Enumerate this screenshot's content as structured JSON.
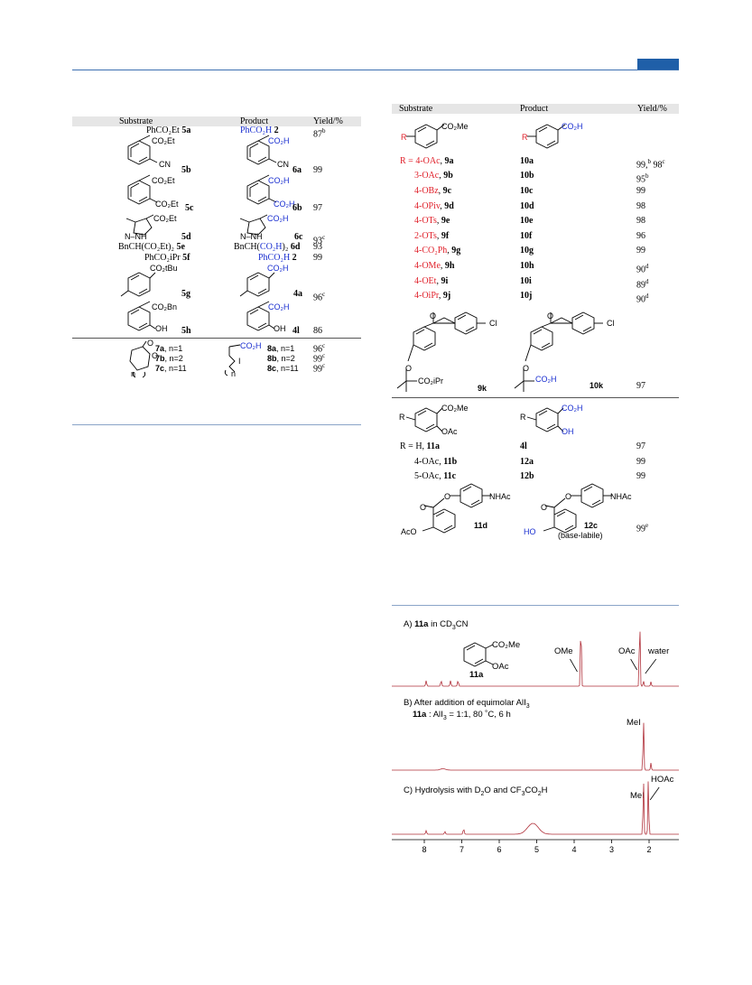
{
  "left_table": {
    "headers": {
      "substrate": "Substrate",
      "product": "Product",
      "yield": "Yield/%"
    },
    "rows": [
      {
        "substrate": "PhCO₂Et",
        "sub_id": "5a",
        "product": "PhCO₂H",
        "prod_id": "2",
        "yield": "87",
        "yield_note": "b"
      },
      {
        "substrate_group": "CO₂Et",
        "substrate_sub": "CN",
        "sub_id": "5b",
        "product_group": "CO₂H",
        "product_sub": "CN",
        "prod_id": "6a",
        "yield": "99"
      },
      {
        "substrate_group": "CO₂Et",
        "substrate_sub": "CO₂Et",
        "sub_id": "5c",
        "product_group": "CO₂H",
        "product_sub": "CO₂H",
        "prod_id": "6b",
        "yield": "97"
      },
      {
        "substrate_group": "CO₂Et",
        "substrate_ring": "N–NH",
        "sub_id": "5d",
        "product_group": "CO₂H",
        "product_ring": "N–NH",
        "prod_id": "6c",
        "yield": "93",
        "yield_note": "c"
      },
      {
        "substrate": "BnCH(CO₂Et)₂",
        "sub_id": "5e",
        "product_pre": "BnCH(",
        "product_blue": "CO₂H",
        "product_post": ")₂",
        "prod_id": "6d",
        "yield": "93"
      },
      {
        "substrate": "PhCO₂iPr",
        "sub_id": "5f",
        "product": "PhCO₂H",
        "prod_id": "2",
        "yield": "99"
      },
      {
        "substrate_group": "CO₂tBu",
        "sub_id": "5g",
        "product_group": "CO₂H",
        "prod_id": "4a",
        "yield": "96",
        "yield_note": "c"
      },
      {
        "substrate_group": "CO₂Bn",
        "substrate_sub": "OH",
        "sub_id": "5h",
        "product_group": "CO₂H",
        "product_sub": "OH",
        "prod_id": "4l",
        "yield": "86"
      }
    ],
    "lactones": [
      {
        "sub_id": "7a",
        "sub_n": ", n=1",
        "prod_id": "8a",
        "prod_n": ", n=1",
        "yield": "96",
        "yield_note": "c"
      },
      {
        "sub_id": "7b",
        "sub_n": ", n=2",
        "prod_id": "8b",
        "prod_n": ", n=2",
        "yield": "99",
        "yield_note": "c"
      },
      {
        "sub_id": "7c",
        "sub_n": ", n=11",
        "prod_id": "8c",
        "prod_n": ", n=11",
        "yield": "99",
        "yield_note": "c"
      }
    ],
    "lactone_labels": {
      "carbonyl_o": "O",
      "ring_o": "O",
      "n": "n",
      "prod_group": "CO₂H",
      "iodo": "I",
      "prod_n": "n"
    }
  },
  "right_table": {
    "headers": {
      "substrate": "Substrate",
      "product": "Product",
      "yield": "Yield/%"
    },
    "scheme1": {
      "sub_group": "CO₂Me",
      "r": "R",
      "prod_group": "CO₂H"
    },
    "rows": [
      {
        "prefix": "R = ",
        "r": "4-OAc",
        "sub_id": "9a",
        "prod_id": "10a",
        "yield": "99,",
        "note1": "b",
        "yield2": " 98",
        "note2": "c"
      },
      {
        "r": "3-OAc",
        "sub_id": "9b",
        "prod_id": "10b",
        "yield": "95",
        "note1": "b"
      },
      {
        "r": "4-OBz",
        "sub_id": "9c",
        "prod_id": "10c",
        "yield": "99"
      },
      {
        "r": "4-OPiv",
        "sub_id": "9d",
        "prod_id": "10d",
        "yield": "98"
      },
      {
        "r": "4-OTs",
        "sub_id": "9e",
        "prod_id": "10e",
        "yield": "98"
      },
      {
        "r": "2-OTs",
        "sub_id": "9f",
        "prod_id": "10f",
        "yield": "96"
      },
      {
        "r": "4-CO₂Ph",
        "sub_id": "9g",
        "prod_id": "10g",
        "yield": "99"
      },
      {
        "r": "4-OMe",
        "sub_id": "9h",
        "prod_id": "10h",
        "yield": "90",
        "note1": "d"
      },
      {
        "r": "4-OEt",
        "sub_id": "9i",
        "prod_id": "10i",
        "yield": "89",
        "note1": "d"
      },
      {
        "r": "4-OiPr",
        "sub_id": "9j",
        "prod_id": "10j",
        "yield": "90",
        "note1": "d"
      }
    ],
    "fenofibrate": {
      "o": "O",
      "cl": "Cl",
      "ether_o": "O",
      "sub_group": "CO₂iPr",
      "sub_id": "9k",
      "prod_group": "CO₂H",
      "prod_id": "10k",
      "yield": "97"
    },
    "scheme2": {
      "r": "R",
      "sub_group": "CO₂Me",
      "sub_oac": "OAc",
      "prod_group": "CO₂H",
      "prod_oh": "OH"
    },
    "rows2": [
      {
        "prefix": "R = ",
        "r": "H",
        "sub_id": "11a",
        "prod_id": "4l",
        "yield": "97"
      },
      {
        "r": "4-OAc",
        "sub_id": "11b",
        "prod_id": "12a",
        "yield": "99"
      },
      {
        "r": "5-OAc",
        "sub_id": "11c",
        "prod_id": "12b",
        "yield": "99"
      }
    ],
    "paracetamol": {
      "o": "O",
      "carbonyl_o": "O",
      "nhac": "NHAc",
      "sub_oac": "AcO",
      "sub_id": "11d",
      "prod_oh": "HO",
      "prod_id": "12c",
      "prod_note": "(base-labile)",
      "yield": "99",
      "yield_note": "e"
    }
  },
  "spectra": {
    "a_label": "A)",
    "a_compound": "11a",
    "a_text": " in CD",
    "a_sub": "3",
    "a_text2": "CN",
    "a_struct_group": "CO₂Me",
    "a_struct_oac": "OAc",
    "a_struct_id": "11a",
    "peak_ome": "OMe",
    "peak_oac": "OAc",
    "peak_water": "water",
    "b_label": "B) After addition of equimolar AlI",
    "b_sub": "3",
    "b_line2_compound": "11a",
    "b_line2_text": " : AlI",
    "b_line2_sub": "3",
    "b_line2_text2": " = 1:1, 80 ˚C, 6 h",
    "peak_mei_b": "MeI",
    "c_label": "C)  Hydrolysis with D",
    "c_sub1": "2",
    "c_text2": "O and CF",
    "c_sub2": "3",
    "c_text3": "CO",
    "c_sub3": "2",
    "c_text4": "H",
    "peak_mei_c": "MeI",
    "peak_hoac": "HOAc",
    "axis_ticks": [
      "8",
      "7",
      "6",
      "5",
      "4",
      "3",
      "2"
    ]
  },
  "colors": {
    "accent": "#1f5fa8",
    "red": "#e0202a",
    "blue": "#1a2fd0",
    "spectrum": "#b0303a"
  }
}
